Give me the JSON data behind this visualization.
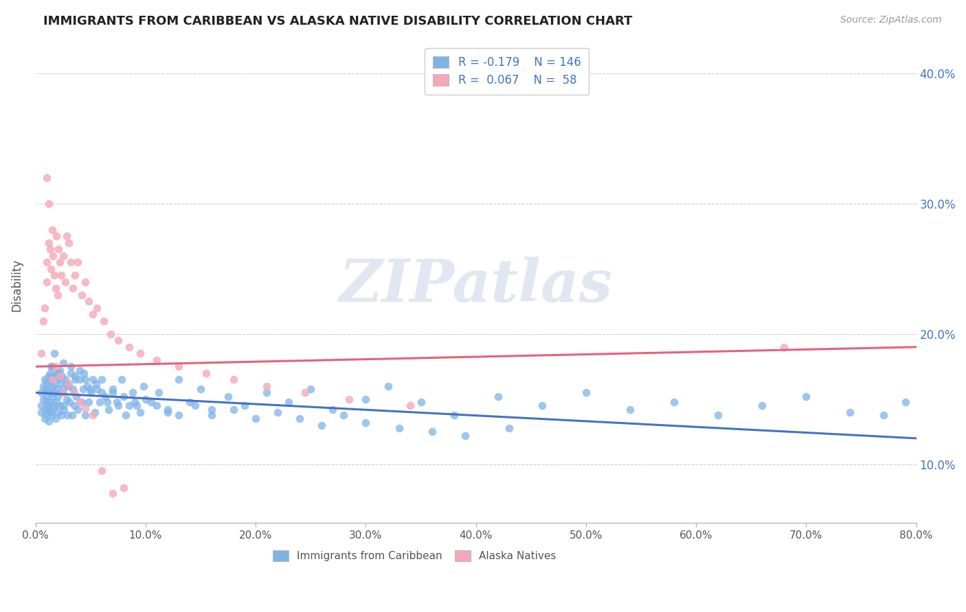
{
  "title": "IMMIGRANTS FROM CARIBBEAN VS ALASKA NATIVE DISABILITY CORRELATION CHART",
  "source_text": "Source: ZipAtlas.com",
  "ylabel": "Disability",
  "xlim": [
    0.0,
    0.8
  ],
  "ylim": [
    0.055,
    0.42
  ],
  "xticks": [
    0.0,
    0.1,
    0.2,
    0.3,
    0.4,
    0.5,
    0.6,
    0.7,
    0.8
  ],
  "xticklabels": [
    "0.0%",
    "10.0%",
    "20.0%",
    "30.0%",
    "40.0%",
    "50.0%",
    "60.0%",
    "70.0%",
    "80.0%"
  ],
  "yticks": [
    0.1,
    0.2,
    0.3,
    0.4
  ],
  "yticklabels": [
    "10.0%",
    "20.0%",
    "30.0%",
    "40.0%"
  ],
  "blue_color": "#7FB3E8",
  "pink_color": "#F4A8B8",
  "blue_line_color": "#4472C4",
  "pink_line_color": "#E8607A",
  "legend_R1": "R = -0.179",
  "legend_N1": "N = 146",
  "legend_R2": "R =  0.067",
  "legend_N2": "N =  58",
  "legend_label1": "Immigrants from Caribbean",
  "legend_label2": "Alaska Natives",
  "watermark": "ZIPatlas",
  "blue_trend_x0": 0.0,
  "blue_trend_x1": 0.8,
  "blue_trend_y0": 0.155,
  "blue_trend_y1": 0.12,
  "pink_trend_x0": 0.0,
  "pink_trend_x1": 0.8,
  "pink_trend_y0": 0.175,
  "pink_trend_y1": 0.19,
  "blue_scatter_x": [
    0.005,
    0.005,
    0.005,
    0.007,
    0.007,
    0.008,
    0.008,
    0.009,
    0.009,
    0.01,
    0.01,
    0.01,
    0.01,
    0.011,
    0.011,
    0.012,
    0.012,
    0.012,
    0.013,
    0.013,
    0.013,
    0.014,
    0.014,
    0.014,
    0.015,
    0.015,
    0.015,
    0.016,
    0.016,
    0.017,
    0.017,
    0.018,
    0.018,
    0.019,
    0.019,
    0.02,
    0.02,
    0.02,
    0.021,
    0.022,
    0.022,
    0.023,
    0.023,
    0.024,
    0.025,
    0.025,
    0.026,
    0.027,
    0.028,
    0.029,
    0.03,
    0.031,
    0.032,
    0.033,
    0.034,
    0.035,
    0.036,
    0.037,
    0.038,
    0.04,
    0.042,
    0.043,
    0.044,
    0.045,
    0.047,
    0.048,
    0.05,
    0.052,
    0.054,
    0.056,
    0.058,
    0.06,
    0.063,
    0.066,
    0.07,
    0.074,
    0.078,
    0.082,
    0.088,
    0.092,
    0.098,
    0.105,
    0.112,
    0.12,
    0.13,
    0.14,
    0.15,
    0.16,
    0.175,
    0.19,
    0.21,
    0.23,
    0.25,
    0.27,
    0.3,
    0.32,
    0.35,
    0.38,
    0.42,
    0.46,
    0.5,
    0.54,
    0.58,
    0.62,
    0.66,
    0.7,
    0.74,
    0.77,
    0.79,
    0.015,
    0.017,
    0.019,
    0.022,
    0.025,
    0.028,
    0.032,
    0.036,
    0.04,
    0.045,
    0.05,
    0.055,
    0.06,
    0.065,
    0.07,
    0.075,
    0.08,
    0.085,
    0.09,
    0.095,
    0.1,
    0.11,
    0.12,
    0.13,
    0.145,
    0.16,
    0.18,
    0.2,
    0.22,
    0.24,
    0.26,
    0.28,
    0.3,
    0.33,
    0.36,
    0.39,
    0.43
  ],
  "blue_scatter_y": [
    0.145,
    0.14,
    0.155,
    0.15,
    0.16,
    0.135,
    0.165,
    0.142,
    0.158,
    0.148,
    0.138,
    0.152,
    0.163,
    0.145,
    0.157,
    0.142,
    0.168,
    0.133,
    0.155,
    0.17,
    0.14,
    0.162,
    0.148,
    0.175,
    0.152,
    0.138,
    0.167,
    0.143,
    0.16,
    0.155,
    0.145,
    0.17,
    0.135,
    0.158,
    0.148,
    0.165,
    0.14,
    0.152,
    0.17,
    0.145,
    0.162,
    0.138,
    0.155,
    0.168,
    0.145,
    0.158,
    0.142,
    0.165,
    0.15,
    0.138,
    0.16,
    0.148,
    0.17,
    0.138,
    0.158,
    0.145,
    0.165,
    0.152,
    0.142,
    0.165,
    0.148,
    0.158,
    0.17,
    0.138,
    0.16,
    0.148,
    0.155,
    0.165,
    0.14,
    0.158,
    0.148,
    0.165,
    0.152,
    0.142,
    0.158,
    0.148,
    0.165,
    0.138,
    0.155,
    0.145,
    0.16,
    0.148,
    0.155,
    0.142,
    0.165,
    0.148,
    0.158,
    0.142,
    0.152,
    0.145,
    0.155,
    0.148,
    0.158,
    0.142,
    0.15,
    0.16,
    0.148,
    0.138,
    0.152,
    0.145,
    0.155,
    0.142,
    0.148,
    0.138,
    0.145,
    0.152,
    0.14,
    0.138,
    0.148,
    0.175,
    0.185,
    0.168,
    0.172,
    0.178,
    0.162,
    0.175,
    0.168,
    0.172,
    0.165,
    0.158,
    0.162,
    0.155,
    0.148,
    0.155,
    0.145,
    0.152,
    0.145,
    0.148,
    0.14,
    0.15,
    0.145,
    0.14,
    0.138,
    0.145,
    0.138,
    0.142,
    0.135,
    0.14,
    0.135,
    0.13,
    0.138,
    0.132,
    0.128,
    0.125,
    0.122,
    0.128
  ],
  "pink_scatter_x": [
    0.005,
    0.007,
    0.008,
    0.01,
    0.01,
    0.012,
    0.013,
    0.014,
    0.015,
    0.016,
    0.017,
    0.018,
    0.019,
    0.02,
    0.021,
    0.022,
    0.023,
    0.025,
    0.027,
    0.028,
    0.03,
    0.032,
    0.034,
    0.036,
    0.038,
    0.042,
    0.045,
    0.048,
    0.052,
    0.056,
    0.062,
    0.068,
    0.075,
    0.085,
    0.095,
    0.11,
    0.13,
    0.155,
    0.18,
    0.21,
    0.245,
    0.285,
    0.34,
    0.01,
    0.012,
    0.015,
    0.018,
    0.022,
    0.025,
    0.03,
    0.035,
    0.04,
    0.045,
    0.052,
    0.06,
    0.07,
    0.08,
    0.68
  ],
  "pink_scatter_y": [
    0.185,
    0.21,
    0.22,
    0.24,
    0.255,
    0.27,
    0.265,
    0.25,
    0.28,
    0.26,
    0.245,
    0.235,
    0.275,
    0.23,
    0.265,
    0.255,
    0.245,
    0.26,
    0.24,
    0.275,
    0.27,
    0.255,
    0.235,
    0.245,
    0.255,
    0.23,
    0.24,
    0.225,
    0.215,
    0.22,
    0.21,
    0.2,
    0.195,
    0.19,
    0.185,
    0.18,
    0.175,
    0.17,
    0.165,
    0.16,
    0.155,
    0.15,
    0.145,
    0.32,
    0.3,
    0.165,
    0.175,
    0.168,
    0.155,
    0.162,
    0.155,
    0.148,
    0.143,
    0.138,
    0.095,
    0.078,
    0.082,
    0.19
  ]
}
